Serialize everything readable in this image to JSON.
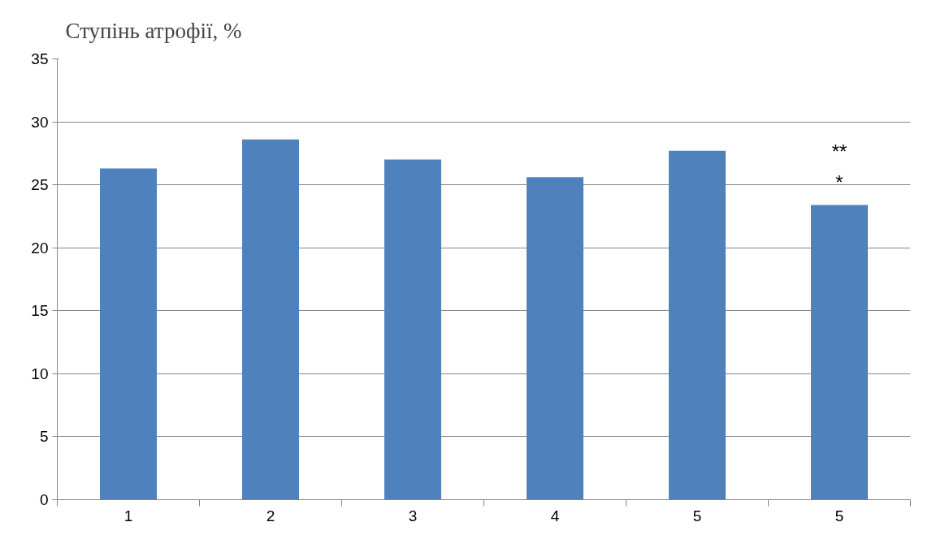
{
  "chart_data": {
    "type": "bar",
    "ylabel": "Ступінь атрофії, %",
    "categories": [
      "1",
      "2",
      "3",
      "4",
      "5",
      "5"
    ],
    "values": [
      26.3,
      28.6,
      27.0,
      25.6,
      27.7,
      23.4
    ],
    "color": "#4f81bd",
    "ylim": [
      0,
      35
    ],
    "yticks": [
      0,
      5,
      10,
      15,
      20,
      25,
      30,
      35
    ],
    "grid": "y",
    "annotations": [
      "**",
      "*"
    ]
  }
}
